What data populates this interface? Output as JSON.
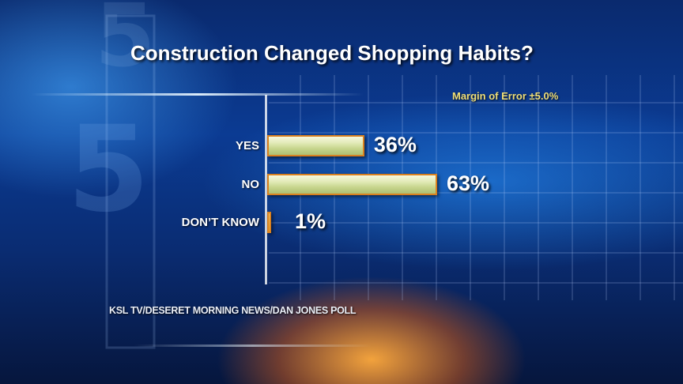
{
  "chart_data": {
    "type": "bar",
    "orientation": "horizontal",
    "title": "Construction Changed Shopping Habits?",
    "subtitle": "Margin of Error ±5.0%",
    "source": "KSL TV/DESERET MORNING NEWS/DAN JONES POLL",
    "categories": [
      "YES",
      "NO",
      "DON’T KNOW"
    ],
    "values": [
      36,
      63,
      1
    ],
    "value_labels": [
      "36%",
      "63%",
      "1%"
    ],
    "xlim": [
      0,
      100
    ],
    "grid": true,
    "legend": "none",
    "colors": {
      "bar_fill": "#d6e0a3",
      "bar_border": "#d9811f",
      "text": "#ffffff",
      "subtitle": "#f0df78"
    }
  }
}
